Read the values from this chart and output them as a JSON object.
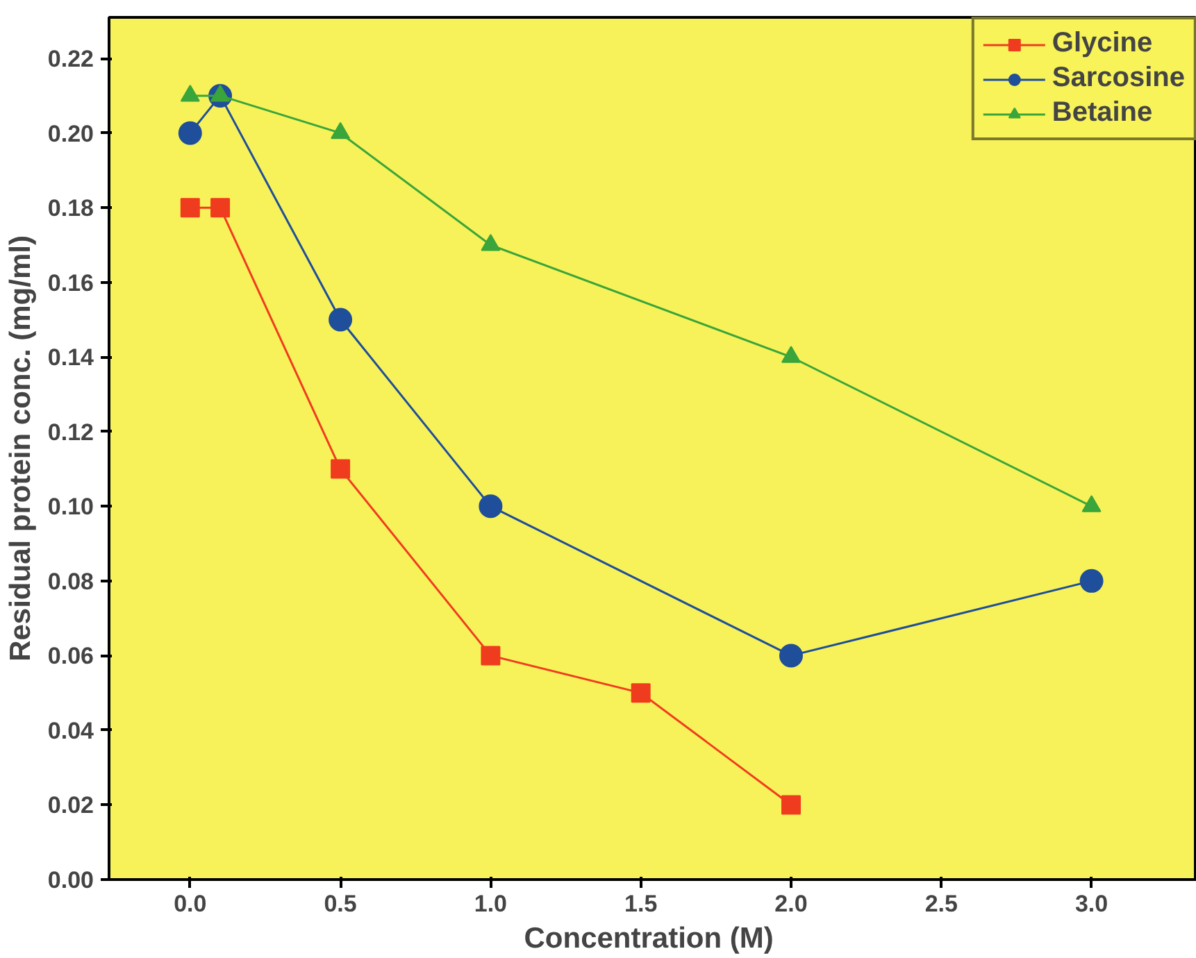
{
  "chart_data": {
    "type": "line",
    "xlabel": "Concentration  (M)",
    "ylabel": "Residual protein conc. (mg/ml)",
    "xlim": [
      -0.27,
      3.35
    ],
    "ylim": [
      0,
      0.231
    ],
    "xticks": [
      {
        "value": 0,
        "label": "0.0"
      },
      0.5,
      {
        "value": 1,
        "label": "1.0"
      },
      1.5,
      {
        "value": 2,
        "label": "2.0"
      },
      2.5,
      {
        "value": 3,
        "label": "3.0"
      }
    ],
    "yticks": [
      {
        "value": 0,
        "label": "0.00"
      },
      0.02,
      0.04,
      0.06,
      0.08,
      {
        "value": 0.1,
        "label": "0.10"
      },
      0.12,
      0.14,
      0.16,
      0.18,
      {
        "value": 0.2,
        "label": "0.20"
      },
      0.22
    ],
    "grid": false,
    "legend": "top right",
    "line_style": "solid",
    "series": [
      {
        "name": "Glycine",
        "color": "#f03c1e",
        "marker": "square",
        "x": [
          0,
          0.1,
          0.5,
          1,
          1.5,
          2
        ],
        "values": [
          0.18,
          0.18,
          0.11,
          0.06,
          0.05,
          0.02
        ]
      },
      {
        "name": "Sarcosine",
        "color": "#1f4e9a",
        "marker": "circle",
        "x": [
          0,
          0.1,
          0.5,
          1,
          2,
          3
        ],
        "values": [
          0.2,
          0.21,
          0.15,
          0.1,
          0.06,
          0.08
        ]
      },
      {
        "name": "Betaine",
        "color": "#3aa53a",
        "marker": "triangle",
        "x": [
          0,
          0.1,
          0.5,
          1,
          2,
          3
        ],
        "values": [
          0.21,
          0.21,
          0.2,
          0.17,
          0.14,
          0.1
        ]
      }
    ]
  }
}
